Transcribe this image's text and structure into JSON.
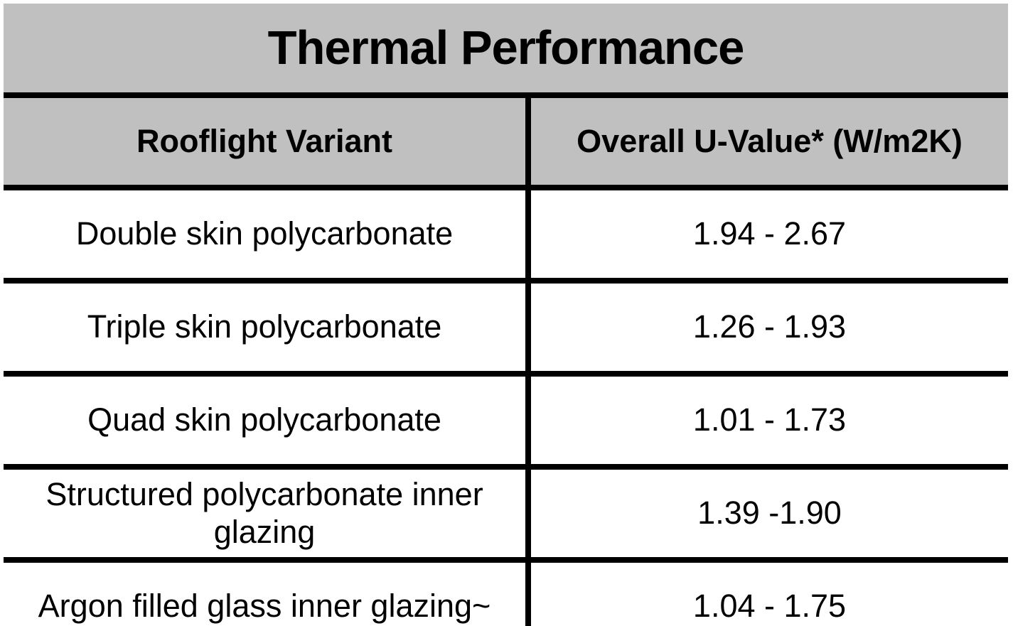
{
  "table": {
    "title": "Thermal Performance",
    "columns": {
      "variant": "Rooflight Variant",
      "u_value": "Overall U-Value* (W/m2K)"
    },
    "rows": [
      {
        "variant": "Double skin polycarbonate",
        "u_value": "1.94 - 2.67"
      },
      {
        "variant": "Triple skin polycarbonate",
        "u_value": "1.26 - 1.93"
      },
      {
        "variant": "Quad skin polycarbonate",
        "u_value": "1.01 - 1.73"
      },
      {
        "variant": "Structured polycarbonate inner glazing",
        "u_value": "1.39 -1.90"
      },
      {
        "variant": "Argon filled glass inner glazing~",
        "u_value": "1.04 - 1.75"
      }
    ],
    "colors": {
      "header_bg": "#C0C0C0",
      "body_bg": "#FFFFFF",
      "border": "#000000",
      "text": "#000000"
    }
  }
}
